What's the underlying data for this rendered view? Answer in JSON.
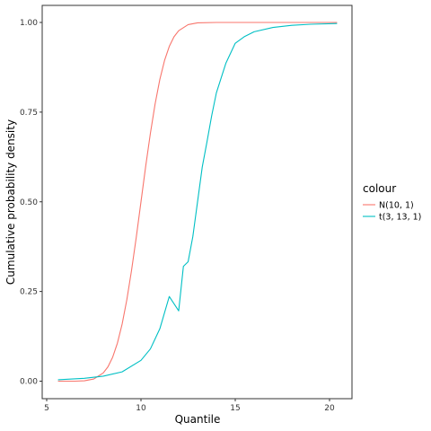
{
  "chart_data": {
    "type": "line",
    "xlabel": "Quantile",
    "ylabel": "Cumulative probability density",
    "xlim": [
      5,
      21
    ],
    "ylim": [
      0,
      1
    ],
    "xticks": [
      5,
      10,
      15,
      20
    ],
    "yticks": [
      0,
      0.25,
      0.5,
      0.75,
      1
    ],
    "ytick_labels": [
      "0.00",
      "0.25",
      "0.50",
      "0.75",
      "1.00"
    ],
    "grid": false,
    "legend": {
      "title": "colour",
      "position": "right"
    },
    "series": [
      {
        "name": "N(10, 1)",
        "color": "#F8766D",
        "x": [
          5.6,
          6.0,
          6.5,
          7.0,
          7.5,
          8.0,
          8.25,
          8.5,
          8.75,
          9.0,
          9.25,
          9.5,
          9.75,
          10.0,
          10.25,
          10.5,
          10.75,
          11.0,
          11.25,
          11.5,
          11.75,
          12.0,
          12.5,
          13.0,
          14.0,
          15.0,
          17.0,
          20.4
        ],
        "values": [
          0.0,
          0.0,
          0.0,
          0.001,
          0.006,
          0.023,
          0.04,
          0.067,
          0.106,
          0.159,
          0.227,
          0.309,
          0.401,
          0.5,
          0.599,
          0.691,
          0.773,
          0.841,
          0.894,
          0.933,
          0.96,
          0.977,
          0.994,
          0.999,
          1.0,
          1.0,
          1.0,
          1.0
        ]
      },
      {
        "name": "t(3, 13, 1)",
        "color": "#00BFC4",
        "x": [
          5.6,
          7.0,
          8.0,
          9.0,
          10.0,
          10.5,
          11.0,
          11.5,
          12.0,
          12.25,
          12.5,
          12.75,
          13.0,
          13.25,
          13.5,
          13.75,
          14.0,
          14.5,
          15.0,
          15.5,
          16.0,
          17.0,
          18.0,
          19.0,
          20.4
        ],
        "values": [
          0.004,
          0.008,
          0.014,
          0.026,
          0.058,
          0.09,
          0.146,
          0.236,
          0.196,
          0.32,
          0.333,
          0.403,
          0.5,
          0.597,
          0.667,
          0.74,
          0.804,
          0.886,
          0.942,
          0.961,
          0.974,
          0.986,
          0.992,
          0.995,
          0.997
        ]
      }
    ]
  }
}
